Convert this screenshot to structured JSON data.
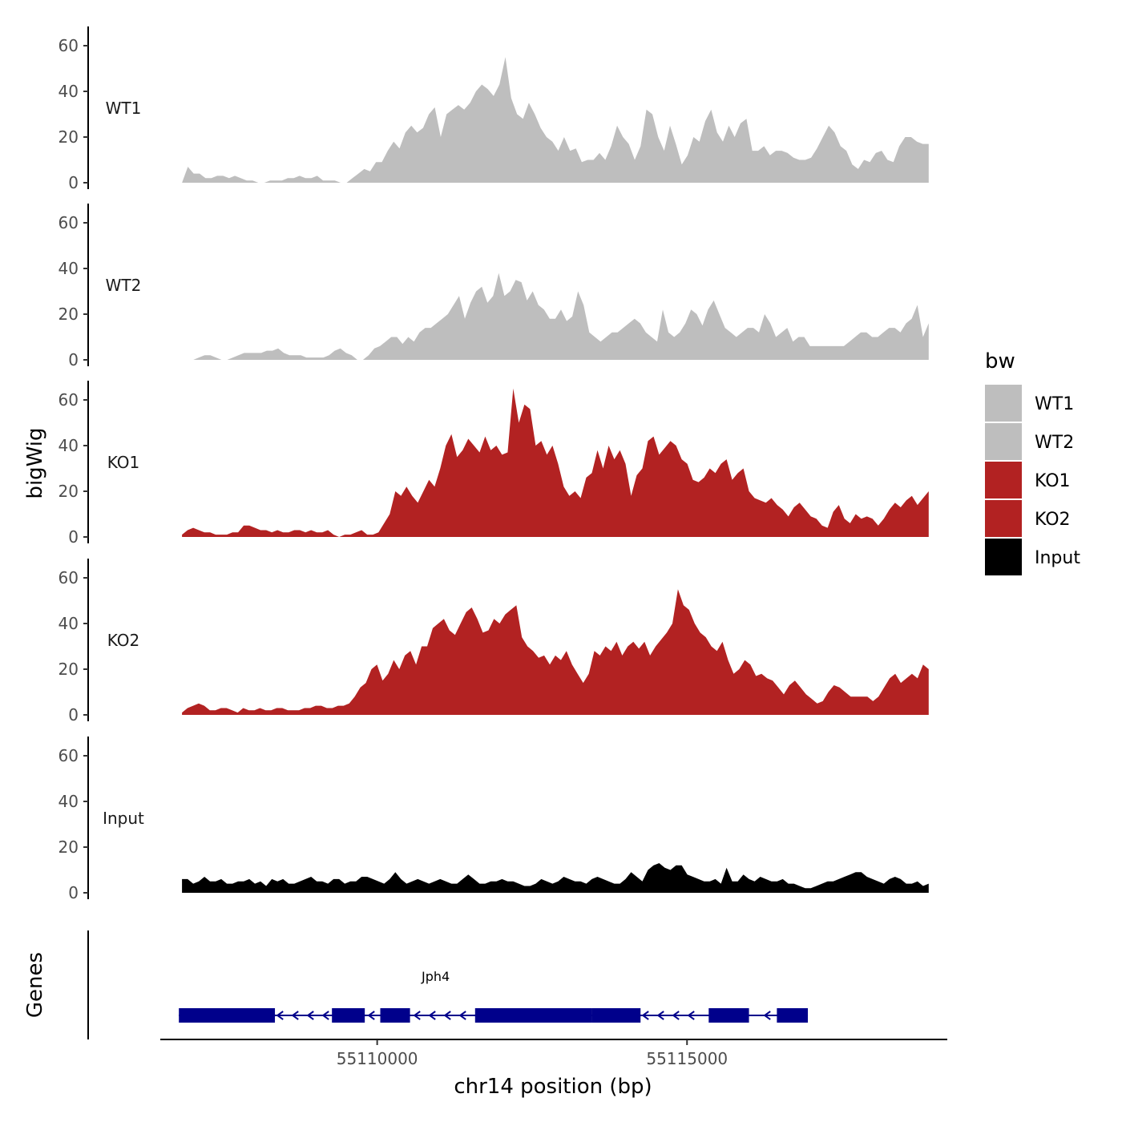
{
  "chart_data": {
    "type": "area",
    "x_range": [
      55106500,
      55119200
    ],
    "xlabel": "chr14 position (bp)",
    "x_ticks": [
      55110000,
      55115000
    ],
    "x_tick_labels": [
      "55110000",
      "55115000"
    ],
    "ylabel": "bigWig",
    "ylim": [
      0,
      67
    ],
    "y_ticks": [
      0,
      20,
      40,
      60
    ],
    "y_tick_labels": [
      "0",
      "20",
      "40",
      "60"
    ],
    "track_range": [
      55106850,
      55118900
    ],
    "series": [
      {
        "name": "WT1",
        "color": "#bebebe",
        "values": [
          0,
          7,
          4,
          4,
          2,
          2,
          3,
          3,
          2,
          3,
          2,
          1,
          1,
          0,
          0,
          1,
          1,
          1,
          2,
          2,
          3,
          2,
          2,
          3,
          1,
          1,
          1,
          0,
          0,
          2,
          4,
          6,
          5,
          9,
          9,
          14,
          18,
          15,
          22,
          25,
          22,
          24,
          30,
          33,
          20,
          30,
          32,
          34,
          32,
          35,
          40,
          43,
          41,
          38,
          43,
          55,
          37,
          30,
          28,
          35,
          30,
          24,
          20,
          18,
          14,
          20,
          14,
          15,
          9,
          10,
          10,
          13,
          10,
          16,
          25,
          20,
          17,
          10,
          16,
          32,
          30,
          20,
          14,
          25,
          17,
          8,
          12,
          20,
          18,
          27,
          32,
          22,
          18,
          25,
          20,
          26,
          28,
          14,
          14,
          16,
          12,
          14,
          14,
          13,
          11,
          10,
          10,
          11,
          15,
          20,
          25,
          22,
          16,
          14,
          8,
          6,
          10,
          9,
          13,
          14,
          10,
          9,
          16,
          20,
          20,
          18,
          17,
          17
        ]
      },
      {
        "name": "WT2",
        "color": "#bebebe",
        "values": [
          0,
          0,
          0,
          1,
          2,
          2,
          1,
          0,
          0,
          1,
          2,
          3,
          3,
          3,
          3,
          4,
          4,
          5,
          3,
          2,
          2,
          2,
          1,
          1,
          1,
          1,
          2,
          4,
          5,
          3,
          2,
          0,
          0,
          2,
          5,
          6,
          8,
          10,
          10,
          7,
          10,
          8,
          12,
          14,
          14,
          16,
          18,
          20,
          24,
          28,
          18,
          25,
          30,
          32,
          25,
          28,
          38,
          28,
          30,
          35,
          34,
          26,
          30,
          24,
          22,
          18,
          18,
          22,
          17,
          19,
          30,
          24,
          12,
          10,
          8,
          10,
          12,
          12,
          14,
          16,
          18,
          16,
          12,
          10,
          8,
          22,
          12,
          10,
          12,
          16,
          22,
          20,
          15,
          22,
          26,
          20,
          14,
          12,
          10,
          12,
          14,
          14,
          12,
          20,
          16,
          10,
          12,
          14,
          8,
          10,
          10,
          6,
          6,
          6,
          6,
          6,
          6,
          6,
          8,
          10,
          12,
          12,
          10,
          10,
          12,
          14,
          14,
          12,
          16,
          18,
          24,
          10,
          16
        ]
      },
      {
        "name": "KO1",
        "color": "#b22222",
        "values": [
          1,
          3,
          4,
          3,
          2,
          2,
          1,
          1,
          1,
          2,
          2,
          5,
          5,
          4,
          3,
          3,
          2,
          3,
          2,
          2,
          3,
          3,
          2,
          3,
          2,
          2,
          3,
          1,
          0,
          1,
          1,
          2,
          3,
          1,
          1,
          2,
          6,
          10,
          20,
          18,
          22,
          18,
          15,
          20,
          25,
          22,
          30,
          40,
          45,
          35,
          38,
          43,
          40,
          37,
          44,
          38,
          40,
          36,
          37,
          65,
          50,
          58,
          56,
          40,
          42,
          36,
          40,
          32,
          22,
          18,
          20,
          17,
          26,
          28,
          38,
          30,
          40,
          34,
          38,
          32,
          18,
          27,
          30,
          42,
          44,
          36,
          39,
          42,
          40,
          34,
          32,
          25,
          24,
          26,
          30,
          28,
          32,
          34,
          25,
          28,
          30,
          20,
          17,
          16,
          15,
          17,
          14,
          12,
          9,
          13,
          15,
          12,
          9,
          8,
          5,
          4,
          11,
          14,
          8,
          6,
          10,
          8,
          9,
          8,
          5,
          8,
          12,
          15,
          13,
          16,
          18,
          14,
          17,
          20
        ]
      },
      {
        "name": "KO2",
        "color": "#b22222",
        "values": [
          1,
          3,
          4,
          5,
          4,
          2,
          2,
          3,
          3,
          2,
          1,
          3,
          2,
          2,
          3,
          2,
          2,
          3,
          3,
          2,
          2,
          2,
          3,
          3,
          4,
          4,
          3,
          3,
          4,
          4,
          5,
          8,
          12,
          14,
          20,
          22,
          15,
          18,
          24,
          20,
          26,
          28,
          22,
          30,
          30,
          38,
          40,
          42,
          37,
          35,
          40,
          45,
          47,
          42,
          36,
          37,
          42,
          40,
          44,
          46,
          48,
          34,
          30,
          28,
          25,
          26,
          22,
          26,
          24,
          28,
          22,
          18,
          14,
          18,
          28,
          26,
          30,
          28,
          32,
          26,
          30,
          32,
          29,
          32,
          26,
          30,
          33,
          36,
          40,
          55,
          48,
          46,
          40,
          36,
          34,
          30,
          28,
          32,
          24,
          18,
          20,
          24,
          22,
          17,
          18,
          16,
          15,
          12,
          9,
          13,
          15,
          12,
          9,
          7,
          5,
          6,
          10,
          13,
          12,
          10,
          8,
          8,
          8,
          8,
          6,
          8,
          12,
          16,
          18,
          14,
          16,
          18,
          16,
          22,
          20
        ]
      },
      {
        "name": "Input",
        "color": "#000000",
        "values": [
          6,
          6,
          4,
          5,
          7,
          5,
          5,
          6,
          4,
          4,
          5,
          5,
          6,
          4,
          5,
          3,
          6,
          5,
          6,
          4,
          4,
          5,
          6,
          7,
          5,
          5,
          4,
          6,
          6,
          4,
          5,
          5,
          7,
          7,
          6,
          5,
          4,
          6,
          9,
          6,
          4,
          5,
          6,
          5,
          4,
          5,
          6,
          5,
          4,
          4,
          6,
          8,
          6,
          4,
          4,
          5,
          5,
          6,
          5,
          5,
          4,
          3,
          3,
          4,
          6,
          5,
          4,
          5,
          7,
          6,
          5,
          5,
          4,
          6,
          7,
          6,
          5,
          4,
          4,
          6,
          9,
          7,
          5,
          10,
          12,
          13,
          11,
          10,
          12,
          12,
          8,
          7,
          6,
          5,
          5,
          6,
          4,
          11,
          5,
          5,
          8,
          6,
          5,
          7,
          6,
          5,
          5,
          6,
          4,
          4,
          3,
          2,
          2,
          3,
          4,
          5,
          5,
          6,
          7,
          8,
          9,
          9,
          7,
          6,
          5,
          4,
          6,
          7,
          6,
          4,
          4,
          5,
          3,
          4
        ]
      }
    ],
    "legend": {
      "title": "bw",
      "position": "right",
      "entries": [
        {
          "label": "WT1",
          "color": "#bebebe"
        },
        {
          "label": "WT2",
          "color": "#bebebe"
        },
        {
          "label": "KO1",
          "color": "#b22222"
        },
        {
          "label": "KO2",
          "color": "#b22222"
        },
        {
          "label": "Input",
          "color": "#000000"
        }
      ]
    },
    "genes": {
      "title": "Genes",
      "color": "#00008b",
      "items": [
        {
          "name": "Jph4",
          "strand": "-",
          "start": 55106800,
          "end": 55116950,
          "exons": [
            [
              55106800,
              55108350
            ],
            [
              55109270,
              55109800
            ],
            [
              55110050,
              55110530
            ],
            [
              55111580,
              55113470
            ],
            [
              55113470,
              55114250
            ],
            [
              55115350,
              55116000
            ],
            [
              55116450,
              55116950
            ]
          ]
        }
      ]
    }
  }
}
